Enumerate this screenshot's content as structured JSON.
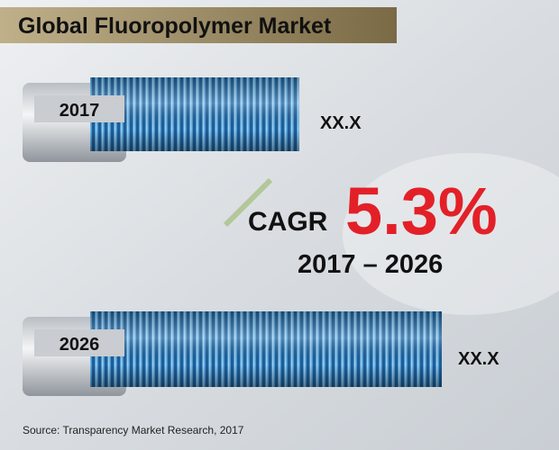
{
  "header": {
    "title": "Global Fluoropolymer Market"
  },
  "tubes": [
    {
      "year": "2017",
      "value": "XX.X"
    },
    {
      "year": "2026",
      "value": "XX.X"
    }
  ],
  "cagr": {
    "label": "CAGR",
    "value": "5.3%",
    "period": "2017 – 2026"
  },
  "source": "Source: Transparency Market Research, 2017"
}
